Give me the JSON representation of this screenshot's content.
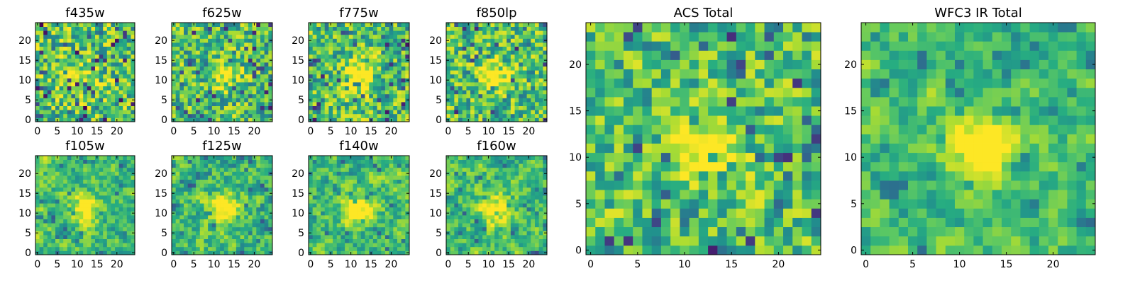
{
  "chart_data": [
    {
      "type": "heatmap",
      "title": "f435w",
      "grid_size": 25,
      "x_ticks": [
        "0",
        "5",
        "10",
        "15",
        "20"
      ],
      "y_ticks": [
        "0",
        "5",
        "10",
        "15",
        "20"
      ],
      "colormap": "viridis",
      "seed": 11,
      "smooth": 0.0,
      "blob": 0.15,
      "colorscale": {
        "low": "#440154",
        "mid": "#21918c",
        "high": "#fde725"
      }
    },
    {
      "type": "heatmap",
      "title": "f625w",
      "grid_size": 25,
      "x_ticks": [
        "0",
        "5",
        "10",
        "15",
        "20"
      ],
      "y_ticks": [
        "0",
        "5",
        "10",
        "15",
        "20"
      ],
      "colormap": "viridis",
      "seed": 23,
      "smooth": 0.1,
      "blob": 0.35
    },
    {
      "type": "heatmap",
      "title": "f775w",
      "grid_size": 25,
      "x_ticks": [
        "0",
        "5",
        "10",
        "15",
        "20"
      ],
      "y_ticks": [
        "0",
        "5",
        "10",
        "15",
        "20"
      ],
      "colormap": "viridis",
      "seed": 37,
      "smooth": 0.1,
      "blob": 0.45
    },
    {
      "type": "heatmap",
      "title": "f850lp",
      "grid_size": 25,
      "x_ticks": [
        "0",
        "5",
        "10",
        "15",
        "20"
      ],
      "y_ticks": [
        "0",
        "5",
        "10",
        "15",
        "20"
      ],
      "colormap": "viridis",
      "seed": 41,
      "smooth": 0.1,
      "blob": 0.45
    },
    {
      "type": "heatmap",
      "title": "f105w",
      "grid_size": 25,
      "x_ticks": [
        "0",
        "5",
        "10",
        "15",
        "20"
      ],
      "y_ticks": [
        "0",
        "5",
        "10",
        "15",
        "20"
      ],
      "colormap": "viridis",
      "seed": 53,
      "smooth": 0.5,
      "blob": 0.4
    },
    {
      "type": "heatmap",
      "title": "f125w",
      "grid_size": 25,
      "x_ticks": [
        "0",
        "5",
        "10",
        "15",
        "20"
      ],
      "y_ticks": [
        "0",
        "5",
        "10",
        "15",
        "20"
      ],
      "colormap": "viridis",
      "seed": 67,
      "smooth": 0.5,
      "blob": 0.45
    },
    {
      "type": "heatmap",
      "title": "f140w",
      "grid_size": 25,
      "x_ticks": [
        "0",
        "5",
        "10",
        "15",
        "20"
      ],
      "y_ticks": [
        "0",
        "5",
        "10",
        "15",
        "20"
      ],
      "colormap": "viridis",
      "seed": 71,
      "smooth": 0.5,
      "blob": 0.45
    },
    {
      "type": "heatmap",
      "title": "f160w",
      "grid_size": 25,
      "x_ticks": [
        "0",
        "5",
        "10",
        "15",
        "20"
      ],
      "y_ticks": [
        "0",
        "5",
        "10",
        "15",
        "20"
      ],
      "colormap": "viridis",
      "seed": 83,
      "smooth": 0.5,
      "blob": 0.45
    },
    {
      "type": "heatmap",
      "title": "ACS Total",
      "grid_size": 25,
      "x_ticks": [
        "0",
        "5",
        "10",
        "15",
        "20"
      ],
      "y_ticks": [
        "0",
        "5",
        "10",
        "15",
        "20"
      ],
      "colormap": "viridis",
      "seed": 97,
      "smooth": 0.2,
      "blob": 0.5
    },
    {
      "type": "heatmap",
      "title": "WFC3 IR Total",
      "grid_size": 25,
      "x_ticks": [
        "0",
        "5",
        "10",
        "15",
        "20"
      ],
      "y_ticks": [
        "0",
        "5",
        "10",
        "15",
        "20"
      ],
      "colormap": "viridis",
      "seed": 101,
      "smooth": 0.6,
      "blob": 0.55
    }
  ]
}
